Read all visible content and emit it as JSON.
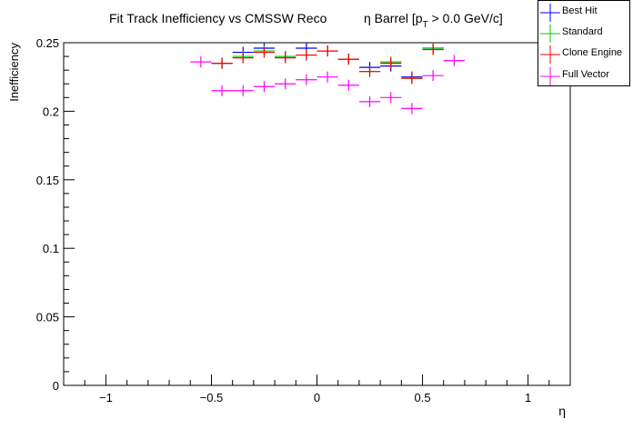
{
  "chart_data": {
    "type": "scatter",
    "title_main": "Fit Track Inefficiency vs CMSSW Reco",
    "title_eta": "η Barrel [p",
    "title_sub": "T",
    "title_rest": " > 0.0 GeV/c]",
    "xlabel": "η",
    "ylabel": "Inefficiency",
    "xlim": [
      -1.2,
      1.2
    ],
    "ylim": [
      0,
      0.25
    ],
    "x_ticks": [
      {
        "v": -1,
        "label": "−1"
      },
      {
        "v": -0.5,
        "label": "−0.5"
      },
      {
        "v": 0,
        "label": "0"
      },
      {
        "v": 0.5,
        "label": "0.5"
      },
      {
        "v": 1,
        "label": "1"
      }
    ],
    "y_ticks": [
      {
        "v": 0,
        "label": "0"
      },
      {
        "v": 0.05,
        "label": "0.05"
      },
      {
        "v": 0.1,
        "label": "0.1"
      },
      {
        "v": 0.15,
        "label": "0.15"
      },
      {
        "v": 0.2,
        "label": "0.2"
      },
      {
        "v": 0.25,
        "label": "0.25"
      }
    ],
    "x_err": 0.05,
    "series": [
      {
        "name": "Best Hit",
        "color": "#0000ff",
        "x": [
          -0.45,
          -0.35,
          -0.25,
          -0.15,
          -0.05,
          0.05,
          0.15,
          0.25,
          0.35,
          0.45,
          0.55
        ],
        "y": [
          0.235,
          0.243,
          0.246,
          0.24,
          0.246,
          0.244,
          0.238,
          0.232,
          0.233,
          0.225,
          0.246
        ],
        "yerr": [
          0.004,
          0.004,
          0.004,
          0.004,
          0.004,
          0.004,
          0.004,
          0.004,
          0.004,
          0.004,
          0.004
        ]
      },
      {
        "name": "Standard",
        "color": "#00cc00",
        "x": [
          -0.45,
          -0.35,
          -0.25,
          -0.15,
          -0.05,
          0.05,
          0.15,
          0.25,
          0.35,
          0.45,
          0.55
        ],
        "y": [
          0.235,
          0.24,
          0.244,
          0.24,
          0.241,
          0.244,
          0.238,
          0.229,
          0.236,
          0.224,
          0.246
        ],
        "yerr": [
          0.004,
          0.004,
          0.004,
          0.004,
          0.004,
          0.004,
          0.004,
          0.004,
          0.004,
          0.004,
          0.004
        ]
      },
      {
        "name": "Clone Engine",
        "color": "#ff0000",
        "x": [
          -0.45,
          -0.35,
          -0.25,
          -0.15,
          -0.05,
          0.05,
          0.15,
          0.25,
          0.35,
          0.45,
          0.55
        ],
        "y": [
          0.235,
          0.239,
          0.243,
          0.239,
          0.241,
          0.244,
          0.238,
          0.229,
          0.235,
          0.224,
          0.245
        ],
        "yerr": [
          0.004,
          0.004,
          0.004,
          0.004,
          0.004,
          0.004,
          0.004,
          0.004,
          0.004,
          0.004,
          0.004
        ]
      },
      {
        "name": "Full Vector",
        "color": "#ff00ff",
        "x": [
          -0.55,
          -0.45,
          -0.35,
          -0.25,
          -0.15,
          -0.05,
          0.05,
          0.15,
          0.25,
          0.35,
          0.45,
          0.55,
          0.65
        ],
        "y": [
          0.236,
          0.215,
          0.215,
          0.218,
          0.22,
          0.223,
          0.225,
          0.219,
          0.207,
          0.21,
          0.202,
          0.226,
          0.237
        ],
        "yerr": [
          0.004,
          0.004,
          0.004,
          0.004,
          0.004,
          0.004,
          0.004,
          0.004,
          0.004,
          0.004,
          0.004,
          0.004,
          0.004
        ]
      }
    ]
  }
}
